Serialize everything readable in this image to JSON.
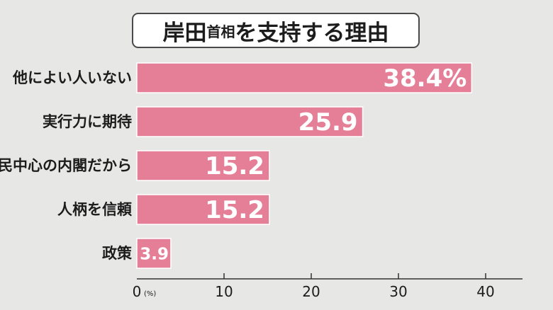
{
  "title": {
    "part1": "岸田",
    "part2": "首相",
    "part3": "を支持する理由"
  },
  "chart_data": {
    "type": "bar",
    "orientation": "horizontal",
    "title": "岸田首相を支持する理由",
    "categories": [
      "他によい人いない",
      "実行力に期待",
      "自民中心の内閣だから",
      "人柄を信頼",
      "政策"
    ],
    "values": [
      38.4,
      25.9,
      15.2,
      15.2,
      3.9
    ],
    "value_labels": [
      "38.4%",
      "25.9",
      "15.2",
      "15.2",
      "3.9"
    ],
    "xlim": [
      0,
      45
    ],
    "xticks": [
      0,
      10,
      20,
      30,
      40
    ],
    "xtick_labels": [
      "0",
      "10",
      "20",
      "30",
      "40"
    ],
    "unit": "(%)",
    "bar_color": "#e57f98",
    "grid": false
  }
}
